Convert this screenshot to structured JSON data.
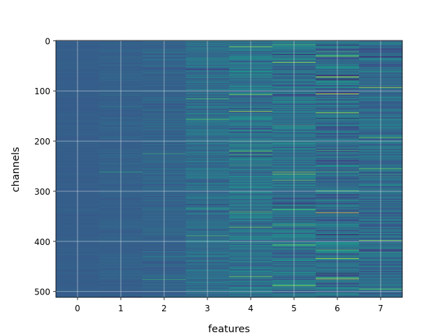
{
  "chart_data": {
    "type": "heatmap",
    "xlabel": "features",
    "ylabel": "channels",
    "x_ticks": [
      "0",
      "1",
      "2",
      "3",
      "4",
      "5",
      "6",
      "7"
    ],
    "y_ticks": [
      "0",
      "100",
      "200",
      "300",
      "400",
      "500"
    ],
    "n_features": 8,
    "n_channels": 512,
    "xlim": [
      -0.5,
      7.5
    ],
    "ylim": [
      511.5,
      -0.5
    ],
    "y_axis_inverted": true,
    "grid": true,
    "colormap": "viridis",
    "colormap_stops": [
      "#440154",
      "#3b528b",
      "#21918c",
      "#5ec962",
      "#fde725"
    ],
    "column_mean_intensity": [
      0.3,
      0.31,
      0.32,
      0.36,
      0.38,
      0.37,
      0.36,
      0.35
    ],
    "column_spread": [
      0.015,
      0.03,
      0.05,
      0.09,
      0.12,
      0.14,
      0.15,
      0.12
    ],
    "highlights": [
      {
        "feature": 4,
        "channel": 12,
        "value": 0.85
      },
      {
        "feature": 4,
        "channel": 107,
        "value": 0.82
      },
      {
        "feature": 4,
        "channel": 141,
        "value": 0.88
      },
      {
        "feature": 4,
        "channel": 220,
        "value": 0.78
      },
      {
        "feature": 4,
        "channel": 372,
        "value": 0.8
      },
      {
        "feature": 4,
        "channel": 470,
        "value": 0.8
      },
      {
        "feature": 5,
        "channel": 8,
        "value": 0.7
      },
      {
        "feature": 5,
        "channel": 43,
        "value": 0.88
      },
      {
        "feature": 5,
        "channel": 262,
        "value": 0.82
      },
      {
        "feature": 5,
        "channel": 266,
        "value": 0.8
      },
      {
        "feature": 5,
        "channel": 278,
        "value": 0.78
      },
      {
        "feature": 5,
        "channel": 407,
        "value": 0.8
      },
      {
        "feature": 5,
        "channel": 488,
        "value": 0.88
      },
      {
        "feature": 6,
        "channel": 31,
        "value": 0.8
      },
      {
        "feature": 6,
        "channel": 72,
        "value": 0.95
      },
      {
        "feature": 6,
        "channel": 106,
        "value": 0.98
      },
      {
        "feature": 6,
        "channel": 144,
        "value": 0.8
      },
      {
        "feature": 6,
        "channel": 343,
        "value": 0.97
      },
      {
        "feature": 6,
        "channel": 434,
        "value": 0.93
      },
      {
        "feature": 6,
        "channel": 475,
        "value": 0.95
      },
      {
        "feature": 7,
        "channel": 93,
        "value": 0.9
      },
      {
        "feature": 7,
        "channel": 193,
        "value": 0.78
      },
      {
        "feature": 7,
        "channel": 255,
        "value": 0.75
      },
      {
        "feature": 7,
        "channel": 398,
        "value": 0.8
      },
      {
        "feature": 7,
        "channel": 495,
        "value": 0.78
      },
      {
        "feature": 3,
        "channel": 116,
        "value": 0.7
      },
      {
        "feature": 3,
        "channel": 157,
        "value": 0.72
      },
      {
        "feature": 3,
        "channel": 389,
        "value": 0.7
      },
      {
        "feature": 2,
        "channel": 225,
        "value": 0.6
      },
      {
        "feature": 2,
        "channel": 476,
        "value": 0.6
      },
      {
        "feature": 1,
        "channel": 262,
        "value": 0.55
      }
    ]
  }
}
